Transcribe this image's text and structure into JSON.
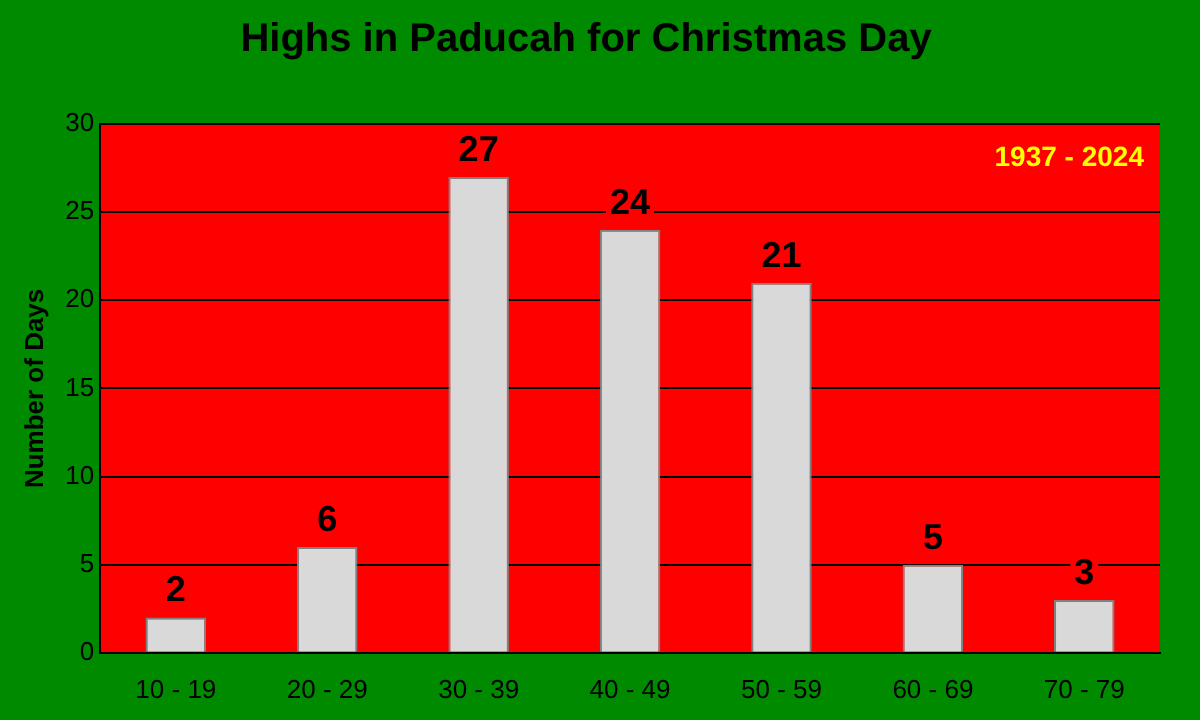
{
  "chart_data": {
    "type": "bar",
    "title": "Highs in Paducah for Christmas Day",
    "ylabel": "Number of Days",
    "categories": [
      "10 - 19",
      "20 - 29",
      "30 - 39",
      "40 - 49",
      "50 - 59",
      "60 - 69",
      "70 - 79"
    ],
    "values": [
      2,
      6,
      27,
      24,
      21,
      5,
      3
    ],
    "color": "#d9d9d9",
    "ylim": [
      0,
      30
    ],
    "yticks": [
      0,
      5,
      10,
      15,
      20,
      25,
      30
    ],
    "grid": "y",
    "data_labels": true,
    "legend": false,
    "annotations": [
      "1937 - 2024"
    ]
  }
}
